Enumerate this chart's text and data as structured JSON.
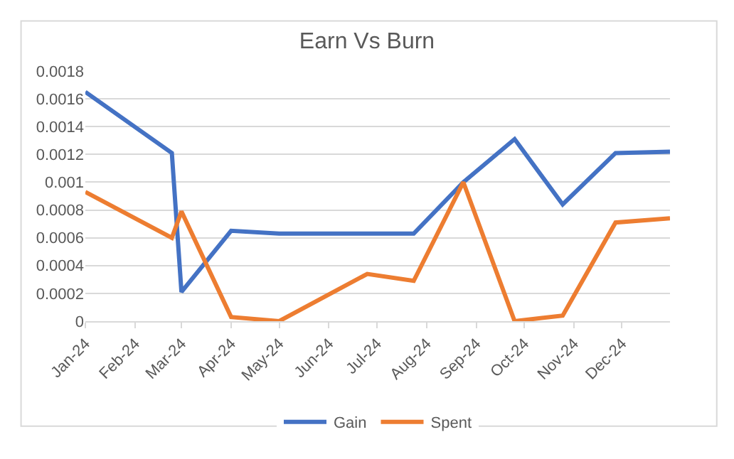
{
  "chart_data": {
    "type": "line",
    "title": "Earn Vs Burn",
    "x": [
      "2024-01-01",
      "2024-02-24",
      "2024-03-01",
      "2024-04-01",
      "2024-05-01",
      "2024-06-25",
      "2024-07-24",
      "2024-08-24",
      "2024-09-25",
      "2024-10-25",
      "2024-11-27",
      "2024-12-31"
    ],
    "series": [
      {
        "name": "Gain",
        "color": "#4472c4",
        "values": [
          0.00165,
          0.00121,
          0.00021,
          0.00065,
          0.00063,
          0.00063,
          0.00063,
          0.001,
          0.00131,
          0.00084,
          0.00121,
          0.00122
        ]
      },
      {
        "name": "Spent",
        "color": "#ed7d31",
        "values": [
          0.00093,
          0.0006,
          0.00079,
          3e-05,
          0.0,
          0.00034,
          0.00029,
          0.001,
          0.0,
          4e-05,
          0.00071,
          0.00074
        ]
      }
    ],
    "xlim": [
      "2024-01-01",
      "2024-12-31"
    ],
    "xticks": [
      {
        "value": "2024-01-01",
        "label": "Jan-24"
      },
      {
        "value": "2024-02-01",
        "label": "Feb-24"
      },
      {
        "value": "2024-03-01",
        "label": "Mar-24"
      },
      {
        "value": "2024-04-01",
        "label": "Apr-24"
      },
      {
        "value": "2024-05-01",
        "label": "May-24"
      },
      {
        "value": "2024-06-01",
        "label": "Jun-24"
      },
      {
        "value": "2024-07-01",
        "label": "Jul-24"
      },
      {
        "value": "2024-08-01",
        "label": "Aug-24"
      },
      {
        "value": "2024-09-01",
        "label": "Sep-24"
      },
      {
        "value": "2024-10-01",
        "label": "Oct-24"
      },
      {
        "value": "2024-11-01",
        "label": "Nov-24"
      },
      {
        "value": "2024-12-01",
        "label": "Dec-24"
      }
    ],
    "ylim": [
      0,
      0.0018
    ],
    "yticks": [
      0,
      0.0002,
      0.0004,
      0.0006,
      0.0008,
      0.001,
      0.0012,
      0.0014,
      0.0016,
      0.0018
    ],
    "grid": "y",
    "legend": "bottom",
    "marker": "none",
    "line_style": "solid"
  }
}
